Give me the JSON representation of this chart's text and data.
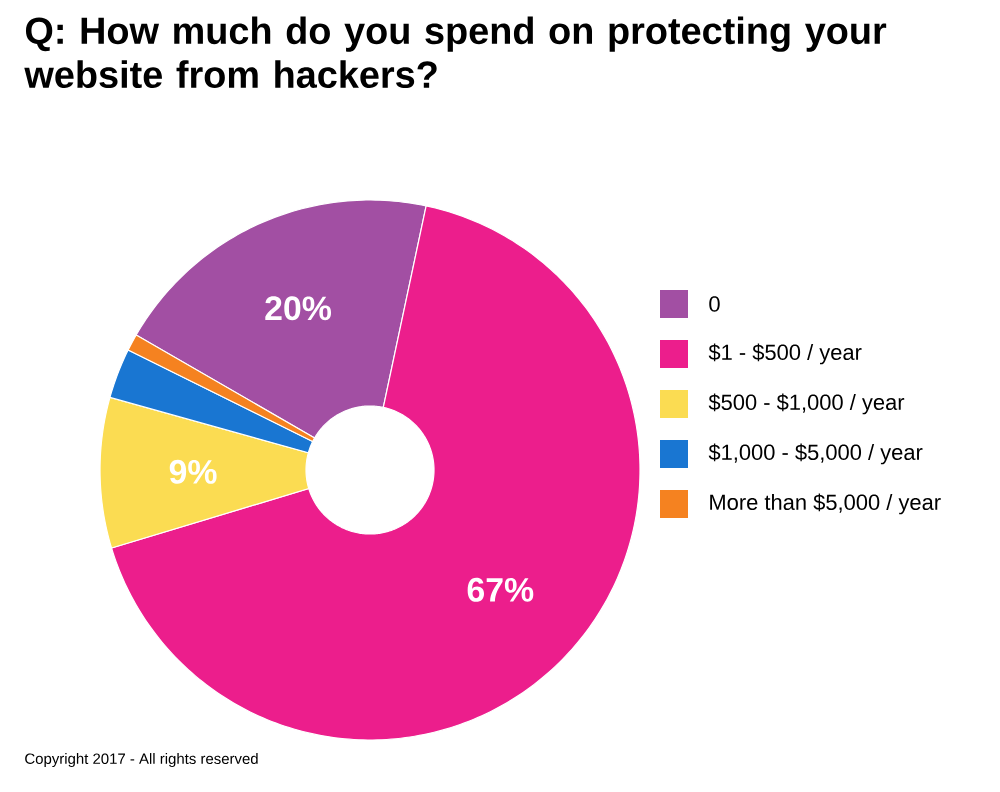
{
  "chart_data": {
    "type": "donut",
    "title": "Q: How much do you spend on protecting your website from hackers?",
    "categories": [
      "0",
      "$1 - $500 / year",
      "$500 - $1,000 / year",
      "$1,000 - $5,000 / year",
      "More than $5,000 / year"
    ],
    "values": [
      20,
      67,
      9,
      3,
      1
    ],
    "colors": [
      "#a24fa3",
      "#ec1e8c",
      "#fbdc52",
      "#1976d2",
      "#f58220"
    ],
    "value_labels": [
      "20%",
      "67%",
      "9%",
      null,
      null
    ],
    "legend": "right",
    "annotations": [
      "Copyright 2017 - All rights reserved"
    ]
  }
}
